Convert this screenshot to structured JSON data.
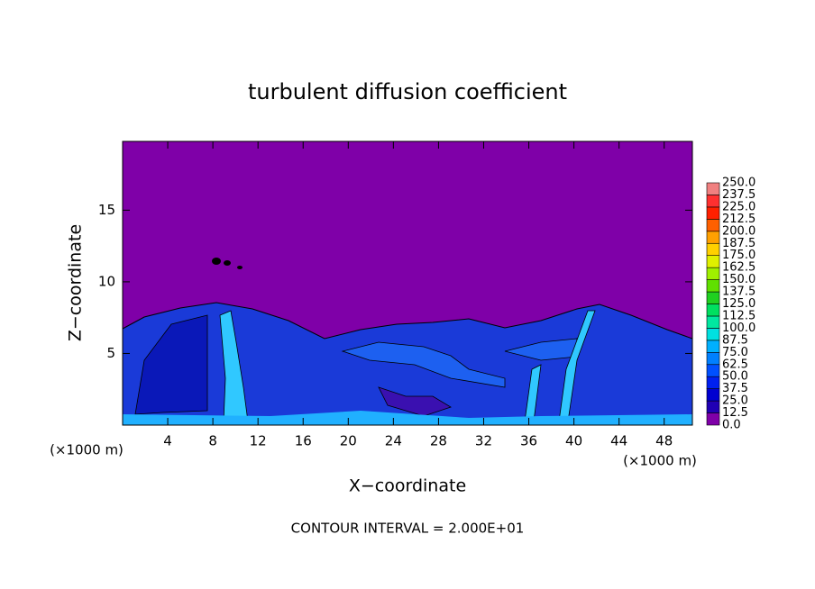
{
  "chart_data": {
    "type": "contour",
    "title": "turbulent diffusion coefficient",
    "xlabel": "X−coordinate",
    "ylabel": "Z−coordinate",
    "x_unit": "(×1000 m)",
    "y_unit": "(×1000 m)",
    "footer": "CONTOUR INTERVAL = 2.000E+01",
    "xlim": [
      0,
      50.5
    ],
    "ylim": [
      0,
      19.8
    ],
    "xticks": [
      4,
      8,
      12,
      16,
      20,
      24,
      28,
      32,
      36,
      40,
      44,
      48
    ],
    "yticks": [
      5,
      10,
      15
    ],
    "colorbar": {
      "levels": [
        {
          "value": 0,
          "label": "0.0"
        },
        {
          "value": 12.5,
          "label": "12.5"
        },
        {
          "value": 25,
          "label": "25.0"
        },
        {
          "value": 37.5,
          "label": "37.5"
        },
        {
          "value": 50,
          "label": "50.0"
        },
        {
          "value": 62.5,
          "label": "62.5"
        },
        {
          "value": 75,
          "label": "75.0"
        },
        {
          "value": 87.5,
          "label": "87.5"
        },
        {
          "value": 100,
          "label": "100.0"
        },
        {
          "value": 112.5,
          "label": "112.5"
        },
        {
          "value": 125,
          "label": "125.0"
        },
        {
          "value": 137.5,
          "label": "137.5"
        },
        {
          "value": 150,
          "label": "150.0"
        },
        {
          "value": 162.5,
          "label": "162.5"
        },
        {
          "value": 175,
          "label": "175.0"
        },
        {
          "value": 187.5,
          "label": "187.5"
        },
        {
          "value": 200,
          "label": "200.0"
        },
        {
          "value": 212.5,
          "label": "212.5"
        },
        {
          "value": 225,
          "label": "225.0"
        },
        {
          "value": 237.5,
          "label": "237.5"
        },
        {
          "value": 250,
          "label": "250.0"
        }
      ],
      "colors": [
        "#7f00a8",
        "#2000b4",
        "#0000d0",
        "#0020f0",
        "#0050ff",
        "#0080ff",
        "#00b0ff",
        "#00e0e0",
        "#00e8a0",
        "#00e060",
        "#20d020",
        "#60e000",
        "#a0f000",
        "#e0f000",
        "#ffd000",
        "#ffa000",
        "#ff6000",
        "#ff2000",
        "#ff3030",
        "#f08080"
      ]
    }
  }
}
